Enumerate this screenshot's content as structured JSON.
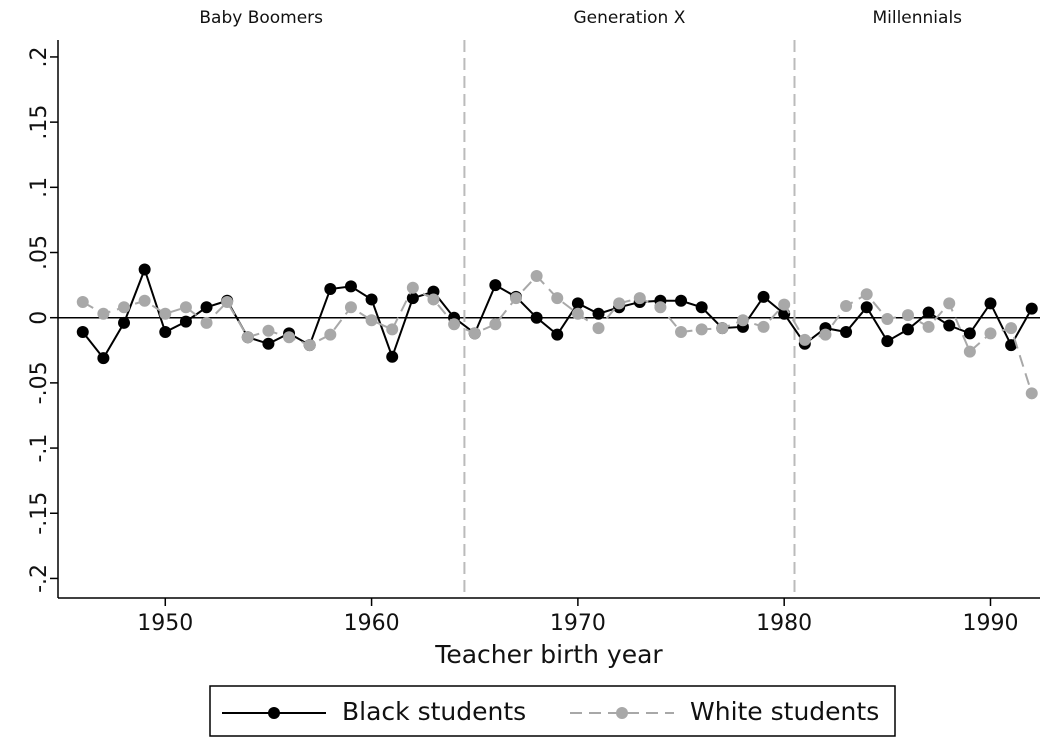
{
  "chart_data": {
    "type": "line",
    "x_label": "Teacher birth year",
    "x": [
      1946,
      1947,
      1948,
      1949,
      1950,
      1951,
      1952,
      1953,
      1954,
      1955,
      1956,
      1957,
      1958,
      1959,
      1960,
      1961,
      1962,
      1963,
      1964,
      1965,
      1966,
      1967,
      1968,
      1969,
      1970,
      1971,
      1972,
      1973,
      1974,
      1975,
      1976,
      1977,
      1978,
      1979,
      1980,
      1981,
      1982,
      1983,
      1984,
      1985,
      1986,
      1987,
      1988,
      1989,
      1990,
      1991,
      1992
    ],
    "series": [
      {
        "name": "Black students",
        "color": "#000000",
        "dash": false,
        "values": [
          -0.011,
          -0.031,
          -0.004,
          0.037,
          -0.011,
          -0.003,
          0.008,
          0.013,
          -0.015,
          -0.02,
          -0.012,
          -0.021,
          0.022,
          0.024,
          0.014,
          -0.03,
          0.015,
          0.02,
          0,
          -0.012,
          0.025,
          0.016,
          0,
          -0.013,
          0.011,
          0.003,
          0.008,
          0.012,
          0.013,
          0.013,
          0.008,
          -0.008,
          -0.007,
          0.016,
          0.003,
          -0.02,
          -0.008,
          -0.011,
          0.008,
          -0.018,
          -0.009,
          0.004,
          -0.006,
          -0.012,
          0.011,
          -0.021,
          0.007
        ]
      },
      {
        "name": "White students",
        "color": "#a8a8a8",
        "dash": true,
        "values": [
          0.012,
          0.003,
          0.008,
          0.013,
          0.003,
          0.008,
          -0.004,
          0.012,
          -0.015,
          -0.01,
          -0.015,
          -0.021,
          -0.013,
          0.008,
          -0.002,
          -0.009,
          0.023,
          0.014,
          -0.005,
          -0.012,
          -0.005,
          0.015,
          0.032,
          0.015,
          0.003,
          -0.008,
          0.011,
          0.015,
          0.008,
          -0.011,
          -0.009,
          -0.008,
          -0.002,
          -0.007,
          0.01,
          -0.017,
          -0.013,
          0.009,
          0.018,
          -0.001,
          0.002,
          -0.007,
          0.011,
          -0.026,
          -0.012,
          -0.008,
          -0.058
        ]
      }
    ],
    "xlim": [
      1944.8,
      1992.4
    ],
    "ylim": [
      -0.215,
      0.213
    ],
    "xticks": [
      1950,
      1960,
      1970,
      1980,
      1990
    ],
    "yticks": [
      {
        "value": -0.2,
        "label": "-.2"
      },
      {
        "value": -0.15,
        "label": "-.15"
      },
      {
        "value": -0.1,
        "label": "-.1"
      },
      {
        "value": -0.05,
        "label": "-.05"
      },
      0,
      {
        "value": 0.05,
        "label": ".05"
      },
      {
        "value": 0.1,
        "label": ".1"
      },
      {
        "value": 0.15,
        "label": ".15"
      },
      {
        "value": 0.2,
        "label": ".2"
      }
    ],
    "reference_line": 0,
    "dividers": [
      1964.5,
      1980.5
    ],
    "period_labels": [
      "Baby Boomers",
      "Generation X",
      "Millennials"
    ],
    "legend": "bottom"
  }
}
